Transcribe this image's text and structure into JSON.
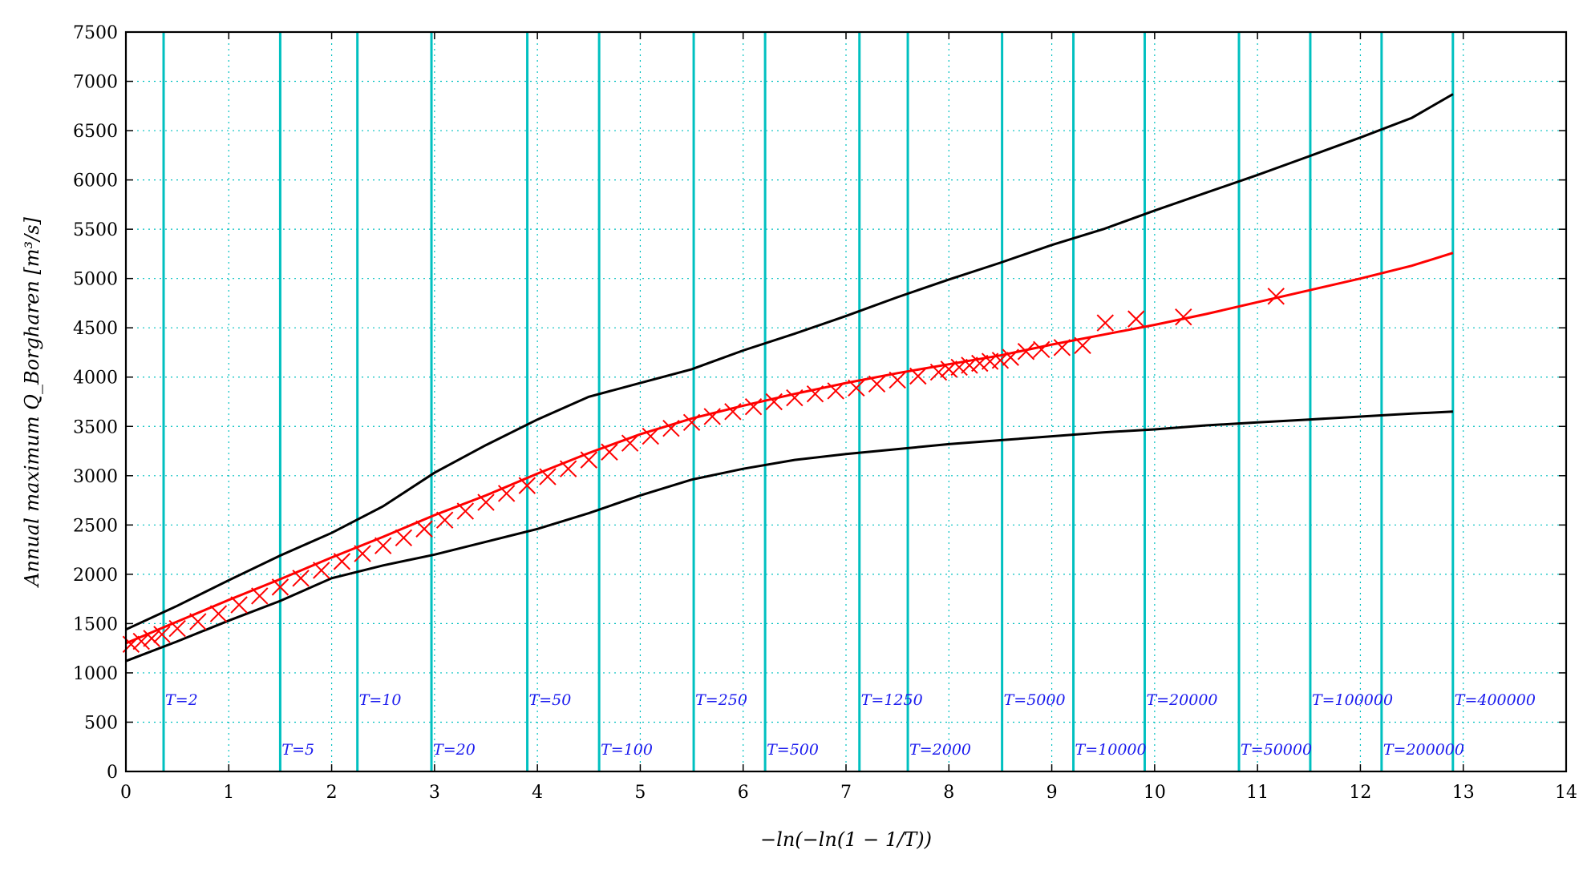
{
  "chart_data": {
    "type": "scatter",
    "xlabel": "−ln(−ln(1 − 1/T))",
    "ylabel": "Annual maximum Q_Borgharen [m³/s]",
    "xlim": [
      0,
      14
    ],
    "ylim": [
      0,
      7500
    ],
    "xticks": [
      0,
      1,
      2,
      3,
      4,
      5,
      6,
      7,
      8,
      9,
      10,
      11,
      12,
      13,
      14
    ],
    "yticks": [
      0,
      500,
      1000,
      1500,
      2000,
      2500,
      3000,
      3500,
      4000,
      4500,
      5000,
      5500,
      6000,
      6500,
      7000,
      7500
    ],
    "grid": true,
    "colors": {
      "fit": "#ff0000",
      "markers": "#ff0000",
      "bounds": "#000000",
      "return_lines": "#00c0c0",
      "return_labels": "#1a1aee",
      "grid": "#00c0c0"
    },
    "return_periods": [
      {
        "T": 2,
        "label": "T=2",
        "row": "upper"
      },
      {
        "T": 5,
        "label": "T=5",
        "row": "lower"
      },
      {
        "T": 10,
        "label": "T=10",
        "row": "upper"
      },
      {
        "T": 20,
        "label": "T=20",
        "row": "lower"
      },
      {
        "T": 50,
        "label": "T=50",
        "row": "upper"
      },
      {
        "T": 100,
        "label": "T=100",
        "row": "lower"
      },
      {
        "T": 250,
        "label": "T=250",
        "row": "upper"
      },
      {
        "T": 500,
        "label": "T=500",
        "row": "lower"
      },
      {
        "T": 1250,
        "label": "T=1250",
        "row": "upper"
      },
      {
        "T": 2000,
        "label": "T=2000",
        "row": "lower"
      },
      {
        "T": 5000,
        "label": "T=5000",
        "row": "upper"
      },
      {
        "T": 10000,
        "label": "T=10000",
        "row": "lower"
      },
      {
        "T": 20000,
        "label": "T=20000",
        "row": "upper"
      },
      {
        "T": 50000,
        "label": "T=50000",
        "row": "lower"
      },
      {
        "T": 100000,
        "label": "T=100000",
        "row": "upper"
      },
      {
        "T": 200000,
        "label": "T=200000",
        "row": "lower"
      },
      {
        "T": 400000,
        "label": "T=400000",
        "row": "upper"
      }
    ],
    "series": [
      {
        "kind": "line",
        "role": "fit",
        "x": [
          0,
          0.5,
          1,
          1.5,
          2,
          2.5,
          3,
          3.5,
          4,
          4.5,
          5,
          5.5,
          6,
          6.5,
          7,
          7.5,
          8,
          8.5,
          9,
          9.5,
          10,
          10.5,
          11,
          11.5,
          12,
          12.5,
          12.9
        ],
        "y": [
          1300,
          1520,
          1740,
          1950,
          2170,
          2380,
          2600,
          2800,
          3020,
          3230,
          3420,
          3580,
          3710,
          3830,
          3940,
          4040,
          4130,
          4220,
          4330,
          4430,
          4530,
          4640,
          4760,
          4880,
          5000,
          5130,
          5260
        ]
      },
      {
        "kind": "line",
        "role": "upper-bound",
        "x": [
          0,
          0.5,
          1,
          1.5,
          2,
          2.5,
          3,
          3.5,
          4,
          4.5,
          5,
          5.5,
          6,
          6.5,
          7,
          7.5,
          8,
          8.5,
          9,
          9.5,
          10,
          10.5,
          11,
          11.5,
          12,
          12.5,
          12.9
        ],
        "y": [
          1440,
          1680,
          1940,
          2190,
          2420,
          2690,
          3030,
          3310,
          3570,
          3800,
          3940,
          4080,
          4270,
          4440,
          4620,
          4810,
          4990,
          5160,
          5340,
          5500,
          5690,
          5870,
          6050,
          6240,
          6430,
          6630,
          6870
        ]
      },
      {
        "kind": "line",
        "role": "lower-bound",
        "x": [
          0,
          0.5,
          1,
          1.5,
          2,
          2.5,
          3,
          3.5,
          4,
          4.5,
          5,
          5.5,
          6,
          6.5,
          7,
          7.5,
          8,
          8.5,
          9,
          9.5,
          10,
          10.5,
          11,
          11.5,
          12,
          12.5,
          12.9
        ],
        "y": [
          1120,
          1320,
          1530,
          1730,
          1960,
          2090,
          2200,
          2330,
          2460,
          2620,
          2800,
          2960,
          3070,
          3160,
          3220,
          3270,
          3320,
          3360,
          3400,
          3440,
          3470,
          3510,
          3540,
          3570,
          3600,
          3630,
          3650
        ]
      },
      {
        "kind": "markers",
        "role": "observed",
        "x": [
          0.05,
          0.15,
          0.25,
          0.35,
          0.5,
          0.7,
          0.9,
          1.1,
          1.3,
          1.5,
          1.7,
          1.9,
          2.1,
          2.3,
          2.5,
          2.7,
          2.9,
          3.1,
          3.3,
          3.5,
          3.7,
          3.9,
          4.1,
          4.3,
          4.5,
          4.7,
          4.9,
          5.1,
          5.3,
          5.5,
          5.7,
          5.9,
          6.1,
          6.3,
          6.5,
          6.7,
          6.9,
          7.1,
          7.3,
          7.5,
          7.7,
          7.9,
          8.0,
          8.1,
          8.2,
          8.3,
          8.4,
          8.5,
          8.6,
          8.75,
          8.9,
          9.1,
          9.3,
          9.52,
          9.82,
          10.28,
          11.18
        ],
        "y": [
          1290,
          1320,
          1350,
          1390,
          1450,
          1520,
          1600,
          1690,
          1780,
          1870,
          1960,
          2040,
          2130,
          2210,
          2290,
          2370,
          2460,
          2550,
          2640,
          2730,
          2820,
          2900,
          2990,
          3070,
          3160,
          3240,
          3330,
          3400,
          3480,
          3540,
          3600,
          3650,
          3700,
          3750,
          3790,
          3830,
          3860,
          3890,
          3930,
          3970,
          4010,
          4050,
          4080,
          4100,
          4120,
          4140,
          4160,
          4170,
          4200,
          4260,
          4280,
          4300,
          4320,
          4550,
          4590,
          4610,
          4820
        ]
      }
    ]
  }
}
